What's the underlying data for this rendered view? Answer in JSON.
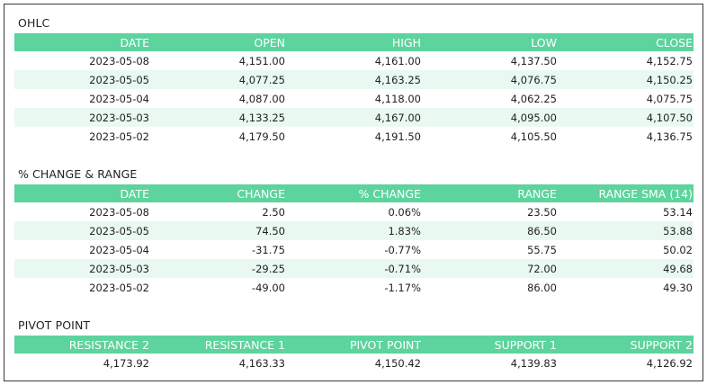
{
  "ohlc": {
    "title": "OHLC",
    "headers": [
      "DATE",
      "OPEN",
      "HIGH",
      "LOW",
      "CLOSE"
    ],
    "rows": [
      [
        "2023-05-08",
        "4,151.00",
        "4,161.00",
        "4,137.50",
        "4,152.75"
      ],
      [
        "2023-05-05",
        "4,077.25",
        "4,163.25",
        "4,076.75",
        "4,150.25"
      ],
      [
        "2023-05-04",
        "4,087.00",
        "4,118.00",
        "4,062.25",
        "4,075.75"
      ],
      [
        "2023-05-03",
        "4,133.25",
        "4,167.00",
        "4,095.00",
        "4,107.50"
      ],
      [
        "2023-05-02",
        "4,179.50",
        "4,191.50",
        "4,105.50",
        "4,136.75"
      ]
    ]
  },
  "change_range": {
    "title": "% CHANGE & RANGE",
    "headers": [
      "DATE",
      "CHANGE",
      "% CHANGE",
      "RANGE",
      "RANGE SMA (14)"
    ],
    "rows": [
      {
        "date": "2023-05-08",
        "change": "2.50",
        "pct": "0.06%",
        "range": "23.50",
        "sma": "53.14",
        "direction": "up"
      },
      {
        "date": "2023-05-05",
        "change": "74.50",
        "pct": "1.83%",
        "range": "86.50",
        "sma": "53.88",
        "direction": "down"
      },
      {
        "date": "2023-05-04",
        "change": "-31.75",
        "pct": "-0.77%",
        "range": "55.75",
        "sma": "50.02",
        "direction": "down"
      },
      {
        "date": "2023-05-03",
        "change": "-29.25",
        "pct": "-0.71%",
        "range": "72.00",
        "sma": "49.68",
        "direction": "up"
      },
      {
        "date": "2023-05-02",
        "change": "-49.00",
        "pct": "-1.17%",
        "range": "86.00",
        "sma": "49.30",
        "direction": "up"
      }
    ]
  },
  "pivot": {
    "title": "PIVOT POINT",
    "headers": [
      "RESISTANCE 2",
      "RESISTANCE 1",
      "PIVOT POINT",
      "SUPPORT 1",
      "SUPPORT 2"
    ],
    "values": [
      "4,173.92",
      "4,163.33",
      "4,150.42",
      "4,139.83",
      "4,126.92"
    ]
  },
  "colors": {
    "header_bg": "#5dd39e",
    "alt_row_bg": "#e9f9f1",
    "positive": "#6db35a",
    "negative": "#c0272d"
  }
}
